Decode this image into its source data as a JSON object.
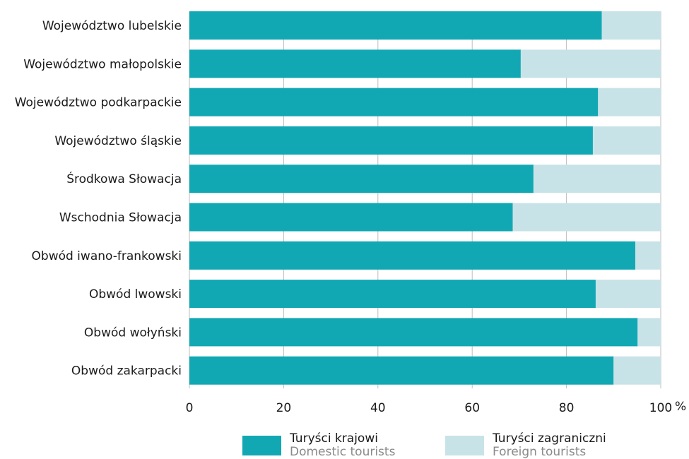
{
  "chart_data": {
    "type": "bar",
    "orientation": "horizontal",
    "stacked": true,
    "categories": [
      "Województwo lubelskie",
      "Województwo małopolskie",
      "Województwo podkarpackie",
      "Województwo śląskie",
      "Środkowa Słowacja",
      "Wschodnia Słowacja",
      "Obwód iwano-frankowski",
      "Obwód lwowski",
      "Obwód wołyński",
      "Obwód zakarpacki"
    ],
    "series": [
      {
        "name": "Turyści krajowi",
        "color": "#11a8b4",
        "values": [
          87.5,
          70.3,
          86.7,
          85.6,
          73.0,
          68.6,
          94.6,
          86.2,
          95.1,
          90.0
        ]
      },
      {
        "name": "Turyści zagraniczni",
        "color": "#c8e3e7",
        "values": [
          12.5,
          29.7,
          13.3,
          14.4,
          27.0,
          31.4,
          5.4,
          13.8,
          4.9,
          10.0
        ]
      }
    ],
    "xlim": [
      0,
      100
    ],
    "xticks": [
      "0",
      "20",
      "40",
      "60",
      "80",
      "100"
    ],
    "xunit": "%",
    "grid": true,
    "legend_position": "bottom"
  },
  "legend": {
    "domestic": {
      "label": "Turyści krajowi",
      "sub": "Domestic tourists",
      "color": "#11a8b4"
    },
    "foreign": {
      "label": "Turyści zagraniczni",
      "sub": "Foreign tourists",
      "color": "#c8e3e7"
    }
  },
  "colors": {
    "grid": "#bdbdbd",
    "text": "#1a1a1a",
    "subtext": "#8a8a8a"
  }
}
